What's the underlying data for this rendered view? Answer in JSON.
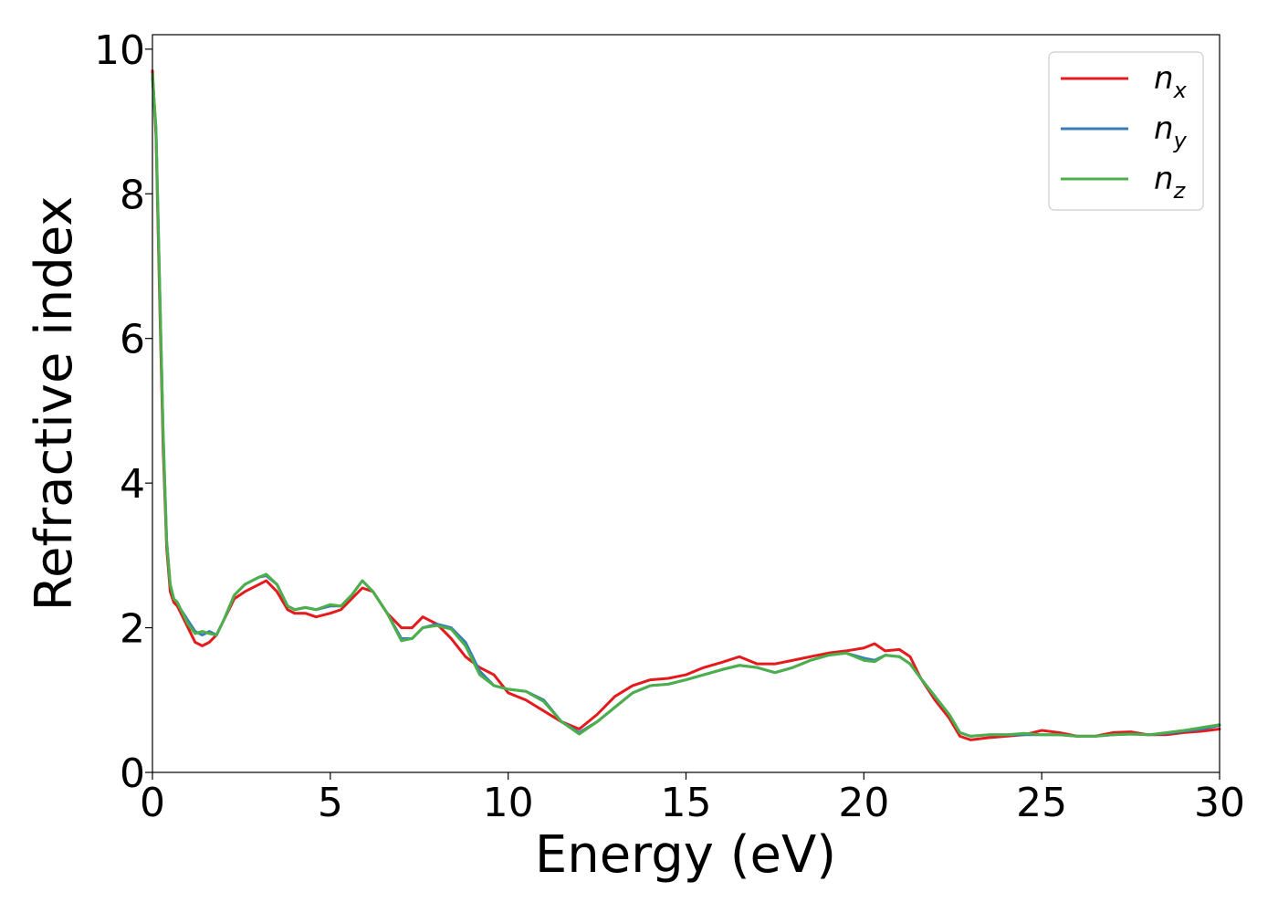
{
  "chart_data": {
    "type": "line",
    "title": "",
    "xlabel": "Energy (eV)",
    "ylabel": "Refractive index",
    "xlim": [
      0,
      30
    ],
    "ylim": [
      0,
      10.2
    ],
    "xticks": [
      0,
      5,
      10,
      15,
      20,
      25,
      30
    ],
    "xtick_labels": [
      "0",
      "5",
      "10",
      "15",
      "20",
      "25",
      "30"
    ],
    "yticks": [
      0,
      2,
      4,
      6,
      8,
      10
    ],
    "ytick_labels": [
      "0",
      "2",
      "4",
      "6",
      "8",
      "10"
    ],
    "grid": false,
    "legend_position": "top-right",
    "series": [
      {
        "name": "n_x",
        "legend_base": "n",
        "legend_sub": "x",
        "color": "#e41a1c",
        "x": [
          0,
          0.1,
          0.2,
          0.3,
          0.4,
          0.5,
          0.6,
          0.7,
          0.8,
          1.0,
          1.2,
          1.4,
          1.6,
          1.8,
          2.0,
          2.3,
          2.6,
          3.0,
          3.2,
          3.5,
          3.8,
          4.0,
          4.3,
          4.6,
          5.0,
          5.3,
          5.6,
          5.9,
          6.2,
          6.6,
          7.0,
          7.3,
          7.6,
          8.0,
          8.4,
          8.8,
          9.2,
          9.6,
          10.0,
          10.5,
          11.0,
          11.5,
          12.0,
          12.5,
          13.0,
          13.5,
          14.0,
          14.5,
          15.0,
          15.5,
          16.0,
          16.5,
          17.0,
          17.5,
          18.0,
          18.5,
          19.0,
          19.5,
          20.0,
          20.3,
          20.6,
          21.0,
          21.3,
          21.6,
          22.0,
          22.4,
          22.7,
          23.0,
          23.5,
          24.0,
          24.5,
          25.0,
          25.5,
          26.0,
          26.5,
          27.0,
          27.5,
          28.0,
          28.5,
          29.0,
          29.5,
          30.0
        ],
        "y": [
          9.7,
          8.8,
          6.6,
          4.5,
          3.1,
          2.5,
          2.35,
          2.3,
          2.2,
          2.0,
          1.8,
          1.75,
          1.8,
          1.9,
          2.1,
          2.4,
          2.5,
          2.6,
          2.65,
          2.5,
          2.25,
          2.2,
          2.2,
          2.15,
          2.2,
          2.25,
          2.4,
          2.55,
          2.5,
          2.2,
          2.0,
          2.0,
          2.15,
          2.05,
          1.85,
          1.6,
          1.45,
          1.35,
          1.1,
          1.0,
          0.85,
          0.7,
          0.6,
          0.8,
          1.05,
          1.2,
          1.28,
          1.3,
          1.35,
          1.45,
          1.52,
          1.6,
          1.5,
          1.5,
          1.55,
          1.6,
          1.65,
          1.68,
          1.72,
          1.78,
          1.68,
          1.7,
          1.6,
          1.3,
          1.0,
          0.75,
          0.5,
          0.45,
          0.48,
          0.5,
          0.52,
          0.58,
          0.55,
          0.5,
          0.5,
          0.55,
          0.56,
          0.52,
          0.52,
          0.55,
          0.57,
          0.6
        ]
      },
      {
        "name": "n_y",
        "legend_base": "n",
        "legend_sub": "y",
        "color": "#377eb8",
        "x": [
          0,
          0.1,
          0.2,
          0.3,
          0.4,
          0.5,
          0.6,
          0.7,
          0.8,
          1.0,
          1.2,
          1.4,
          1.6,
          1.8,
          2.0,
          2.3,
          2.6,
          3.0,
          3.2,
          3.5,
          3.8,
          4.0,
          4.3,
          4.6,
          5.0,
          5.3,
          5.6,
          5.9,
          6.2,
          6.6,
          7.0,
          7.3,
          7.6,
          8.0,
          8.4,
          8.8,
          9.2,
          9.6,
          10.0,
          10.5,
          11.0,
          11.5,
          12.0,
          12.5,
          13.0,
          13.5,
          14.0,
          14.5,
          15.0,
          15.5,
          16.0,
          16.5,
          17.0,
          17.5,
          18.0,
          18.5,
          19.0,
          19.5,
          20.0,
          20.3,
          20.6,
          21.0,
          21.3,
          21.6,
          22.0,
          22.4,
          22.7,
          23.0,
          23.5,
          24.0,
          24.5,
          25.0,
          25.5,
          26.0,
          26.5,
          27.0,
          27.5,
          28.0,
          28.5,
          29.0,
          29.5,
          30.0
        ],
        "y": [
          9.6,
          8.9,
          6.8,
          4.7,
          3.2,
          2.6,
          2.4,
          2.35,
          2.25,
          2.1,
          1.95,
          1.9,
          1.95,
          1.9,
          2.1,
          2.45,
          2.6,
          2.7,
          2.72,
          2.6,
          2.3,
          2.25,
          2.28,
          2.25,
          2.3,
          2.3,
          2.45,
          2.65,
          2.5,
          2.2,
          1.85,
          1.85,
          2.0,
          2.05,
          2.0,
          1.8,
          1.4,
          1.2,
          1.15,
          1.12,
          1.0,
          0.7,
          0.55,
          0.7,
          0.9,
          1.1,
          1.2,
          1.22,
          1.28,
          1.35,
          1.42,
          1.48,
          1.45,
          1.38,
          1.45,
          1.55,
          1.62,
          1.65,
          1.58,
          1.55,
          1.62,
          1.6,
          1.5,
          1.3,
          1.05,
          0.8,
          0.55,
          0.5,
          0.52,
          0.52,
          0.52,
          0.52,
          0.52,
          0.5,
          0.5,
          0.52,
          0.53,
          0.52,
          0.54,
          0.57,
          0.6,
          0.65
        ]
      },
      {
        "name": "n_z",
        "legend_base": "n",
        "legend_sub": "z",
        "color": "#4daf4a",
        "x": [
          0,
          0.1,
          0.2,
          0.3,
          0.4,
          0.5,
          0.6,
          0.7,
          0.8,
          1.0,
          1.2,
          1.4,
          1.6,
          1.8,
          2.0,
          2.3,
          2.6,
          3.0,
          3.2,
          3.5,
          3.8,
          4.0,
          4.3,
          4.6,
          5.0,
          5.3,
          5.6,
          5.9,
          6.2,
          6.6,
          7.0,
          7.3,
          7.6,
          8.0,
          8.4,
          8.8,
          9.2,
          9.6,
          10.0,
          10.5,
          11.0,
          11.5,
          12.0,
          12.5,
          13.0,
          13.5,
          14.0,
          14.5,
          15.0,
          15.5,
          16.0,
          16.5,
          17.0,
          17.5,
          18.0,
          18.5,
          19.0,
          19.5,
          20.0,
          20.3,
          20.6,
          21.0,
          21.3,
          21.6,
          22.0,
          22.4,
          22.7,
          23.0,
          23.5,
          24.0,
          24.5,
          25.0,
          25.5,
          26.0,
          26.5,
          27.0,
          27.5,
          28.0,
          28.5,
          29.0,
          29.5,
          30.0
        ],
        "y": [
          9.65,
          8.9,
          6.8,
          4.7,
          3.2,
          2.6,
          2.4,
          2.35,
          2.25,
          2.05,
          1.92,
          1.95,
          1.92,
          1.9,
          2.1,
          2.45,
          2.6,
          2.7,
          2.74,
          2.6,
          2.3,
          2.25,
          2.28,
          2.25,
          2.32,
          2.3,
          2.45,
          2.65,
          2.5,
          2.2,
          1.82,
          1.85,
          2.0,
          2.03,
          1.98,
          1.75,
          1.35,
          1.2,
          1.15,
          1.12,
          0.98,
          0.7,
          0.53,
          0.7,
          0.9,
          1.1,
          1.2,
          1.22,
          1.28,
          1.35,
          1.42,
          1.48,
          1.45,
          1.38,
          1.45,
          1.55,
          1.62,
          1.65,
          1.55,
          1.53,
          1.62,
          1.6,
          1.5,
          1.3,
          1.05,
          0.8,
          0.55,
          0.5,
          0.52,
          0.52,
          0.54,
          0.52,
          0.52,
          0.5,
          0.5,
          0.52,
          0.53,
          0.52,
          0.55,
          0.58,
          0.62,
          0.66
        ]
      }
    ]
  }
}
